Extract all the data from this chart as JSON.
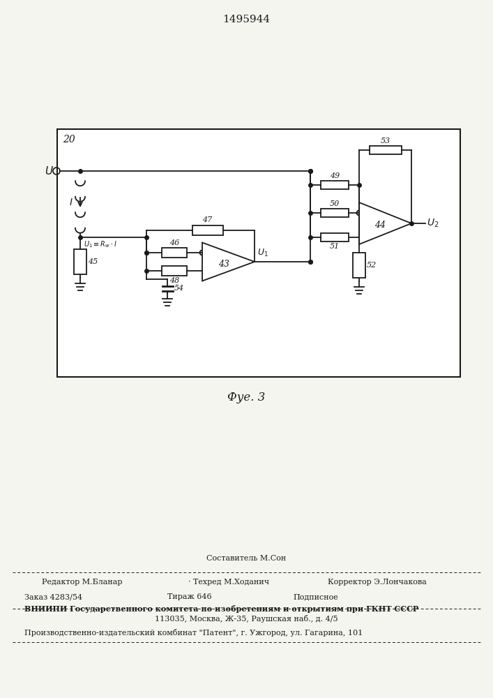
{
  "patent_number": "1495944",
  "fig_caption": "Фуе. 3",
  "background_color": "#f5f5f0",
  "text_color": "#1a1a1a",
  "footer_line0": "Составитель М.Сон",
  "footer_line1_col1": "Редактор М.Бланар",
  "footer_line1_col2": "Техред М.Ходанич",
  "footer_line1_col3": "Корректор Э.Лончакова",
  "footer_line2_col1": "Заказ 4283/54",
  "footer_line2_col2": "Тираж 646",
  "footer_line2_col3": "Подписное",
  "footer_line3": "ВНИИПИ Государственного комитета по изобретениям и открытиям при ГКНТ СССР",
  "footer_line4": "113035, Москва, Ж-35, Раушская наб., д. 4/5",
  "footer_line5": "Производственно-издательский комбинат \"Патент\", г. Ужгород, ул. Гагарина, 101"
}
